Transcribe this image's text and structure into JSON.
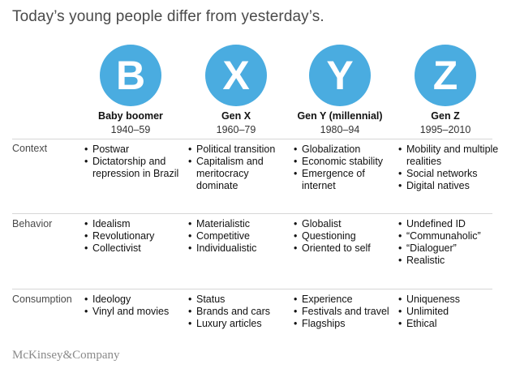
{
  "title": "Today’s young people differ from yesterday’s.",
  "accent_color": "#4aace0",
  "generations": [
    {
      "letter": "B",
      "name": "Baby boomer",
      "years": "1940–59"
    },
    {
      "letter": "X",
      "name": "Gen X",
      "years": "1960–79"
    },
    {
      "letter": "Y",
      "name": "Gen Y (millennial)",
      "years": "1980–94"
    },
    {
      "letter": "Z",
      "name": "Gen Z",
      "years": "1995–2010"
    }
  ],
  "rows": [
    {
      "label": "Context",
      "cells": [
        [
          "Postwar",
          "Dictatorship and repression in Brazil"
        ],
        [
          "Political transition",
          "Capitalism and meritocracy dominate"
        ],
        [
          "Globalization",
          "Economic stability",
          "Emergence of internet"
        ],
        [
          "Mobility and multiple realities",
          "Social networks",
          "Digital natives"
        ]
      ]
    },
    {
      "label": "Behavior",
      "cells": [
        [
          "Idealism",
          "Revolutionary",
          "Collectivist"
        ],
        [
          "Materialistic",
          "Competitive",
          "Individualistic"
        ],
        [
          "Globalist",
          "Questioning",
          "Oriented to self"
        ],
        [
          "Undefined ID",
          "“Communaholic”",
          "“Dialoguer”",
          "Realistic"
        ]
      ]
    },
    {
      "label": "Consumption",
      "cells": [
        [
          "Ideology",
          "Vinyl and movies"
        ],
        [
          "Status",
          "Brands and cars",
          "Luxury articles"
        ],
        [
          "Experience",
          "Festivals and travel",
          "Flagships"
        ],
        [
          "Uniqueness",
          "Unlimited",
          "Ethical"
        ]
      ]
    }
  ],
  "footer": {
    "brand": "McKinsey&Company"
  }
}
